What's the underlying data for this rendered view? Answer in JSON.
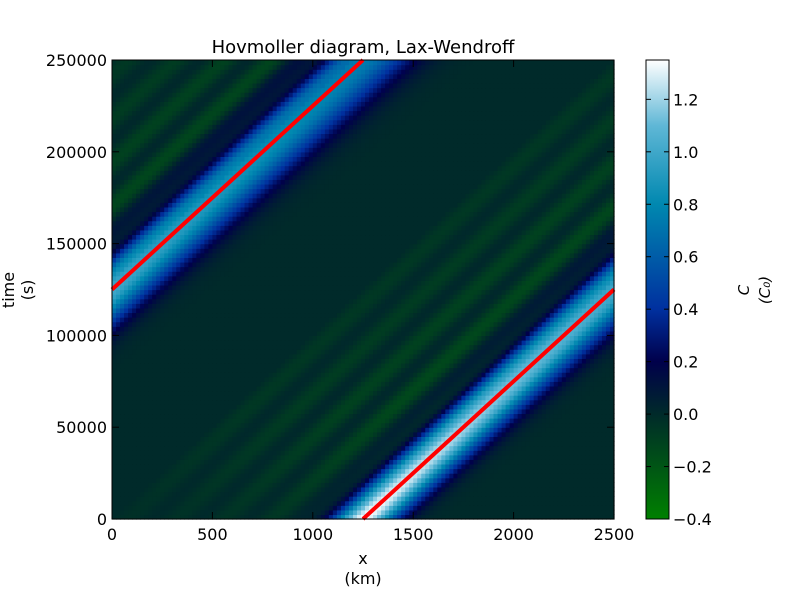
{
  "chart_data": {
    "type": "heatmap",
    "title": "Hovmoller diagram, Lax-Wendroff",
    "xlabel": [
      "x",
      "(km)"
    ],
    "ylabel": [
      "time",
      "(s)"
    ],
    "xlim": [
      0,
      2500
    ],
    "ylim": [
      0,
      250000
    ],
    "xticks": [
      0,
      500,
      1000,
      1500,
      2000,
      2500
    ],
    "yticks": [
      0,
      50000,
      100000,
      150000,
      200000,
      250000
    ],
    "colorbar": {
      "label": [
        "C",
        "(C₀)"
      ],
      "range": [
        -0.4,
        1.35
      ],
      "ticks": [
        -0.4,
        -0.2,
        0.0,
        0.2,
        0.4,
        0.6,
        0.8,
        1.0,
        1.2
      ],
      "tick_labels": [
        "−0.4",
        "−0.2",
        "0.0",
        "0.2",
        "0.4",
        "0.6",
        "0.8",
        "1.0",
        "1.2"
      ],
      "colormap": [
        {
          "v": -0.4,
          "c": "#008000"
        },
        {
          "v": 0.0,
          "c": "#002a2a"
        },
        {
          "v": 0.2,
          "c": "#00004b"
        },
        {
          "v": 0.4,
          "c": "#00309f"
        },
        {
          "v": 0.8,
          "c": "#0088b0"
        },
        {
          "v": 1.1,
          "c": "#5fb7d6"
        },
        {
          "v": 1.35,
          "c": "#ffffff"
        }
      ]
    },
    "field": {
      "description_kind": "advected pulse on periodic domain",
      "domain_length_km": 2500,
      "initial_center_km": 1250,
      "pulse_width_km": 110,
      "peak": 1.35,
      "speed_km_per_s": 0.01
    },
    "reference_lines": [
      {
        "color": "#ff0000",
        "points": [
          [
            1250,
            0
          ],
          [
            2500,
            125000
          ]
        ]
      },
      {
        "color": "#ff0000",
        "points": [
          [
            0,
            125000
          ],
          [
            1250,
            250000
          ]
        ]
      }
    ]
  }
}
